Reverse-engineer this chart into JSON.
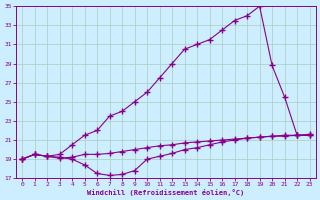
{
  "background_color": "#cceeff",
  "grid_color": "#aaccbb",
  "line_color": "#880088",
  "xlabel": "Windchill (Refroidissement éolien,°C)",
  "xlim": [
    -0.5,
    23.5
  ],
  "ylim": [
    17,
    35
  ],
  "yticks": [
    17,
    19,
    21,
    23,
    25,
    27,
    29,
    31,
    33,
    35
  ],
  "xticks": [
    0,
    1,
    2,
    3,
    4,
    5,
    6,
    7,
    8,
    9,
    10,
    11,
    12,
    13,
    14,
    15,
    16,
    17,
    18,
    19,
    20,
    21,
    22,
    23
  ],
  "line1_x": [
    0,
    1,
    2,
    3,
    4,
    5,
    6,
    7,
    8,
    9,
    10,
    11,
    12,
    13,
    14,
    15,
    16,
    17,
    18,
    19,
    20,
    21,
    22,
    23
  ],
  "line1_y": [
    19.0,
    19.5,
    19.3,
    19.1,
    19.2,
    19.5,
    19.5,
    19.6,
    19.8,
    20.0,
    20.2,
    20.4,
    20.5,
    20.7,
    20.8,
    20.9,
    21.0,
    21.1,
    21.2,
    21.3,
    21.4,
    21.4,
    21.5,
    21.5
  ],
  "line2_x": [
    0,
    1,
    2,
    3,
    4,
    5,
    6,
    7,
    8,
    9,
    10,
    11,
    12,
    13,
    14,
    15,
    16,
    17,
    18,
    19,
    20,
    21,
    22,
    23
  ],
  "line2_y": [
    19.0,
    19.5,
    19.3,
    19.2,
    19.0,
    18.4,
    17.5,
    17.3,
    17.4,
    17.8,
    19.0,
    19.3,
    19.6,
    20.0,
    20.2,
    20.5,
    20.8,
    21.0,
    21.2,
    21.3,
    21.4,
    21.5,
    21.5,
    21.6
  ],
  "line3_x": [
    0,
    1,
    2,
    3,
    4,
    5,
    6,
    7,
    8,
    9,
    10,
    11,
    12,
    13,
    14,
    15,
    16,
    17,
    18,
    19,
    20,
    21,
    22,
    23
  ],
  "line3_y": [
    19.0,
    19.5,
    19.3,
    19.5,
    20.5,
    21.5,
    22.0,
    23.5,
    24.0,
    25.0,
    26.0,
    27.5,
    29.0,
    30.5,
    31.0,
    31.5,
    32.5,
    33.5,
    34.0,
    35.0,
    28.8,
    25.5,
    21.5,
    21.5
  ]
}
